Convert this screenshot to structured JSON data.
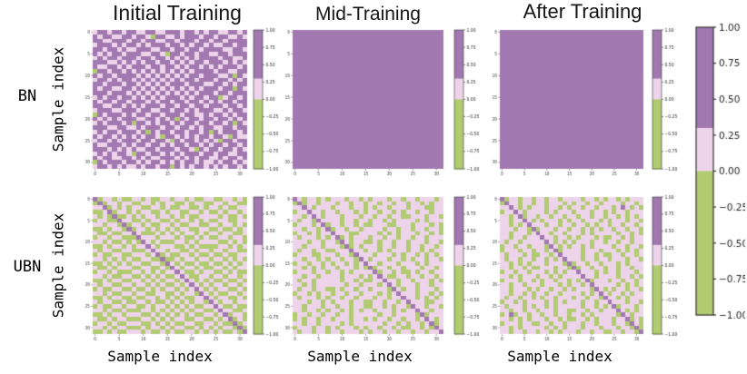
{
  "figure": {
    "column_titles": [
      "Initial Training",
      "Mid-Training",
      "After Training"
    ],
    "row_labels": [
      "BN",
      "UBN"
    ],
    "y_axis_label": "Sample index",
    "x_axis_label": "Sample index"
  },
  "chart_data": {
    "type": "heatmap",
    "grid_size": 32,
    "axis_ticks": [
      0,
      5,
      10,
      15,
      20,
      25,
      30
    ],
    "palette": {
      "0": "#b1cb70",
      "1": "#eed4ea",
      "2": "#a178af"
    },
    "colorbar": {
      "range": [
        1.0,
        -1.0
      ],
      "ticks": [
        1.0,
        0.75,
        0.5,
        0.25,
        0.0,
        -0.25,
        -0.5,
        -0.75,
        -1.0
      ],
      "tick_labels": [
        "1.00",
        "0.75",
        "0.50",
        "0.25",
        "0.00",
        "−0.25",
        "−0.50",
        "−0.75",
        "−1.00"
      ],
      "segments": [
        {
          "from": 1.0,
          "to": 0.3,
          "color": "#a178af"
        },
        {
          "from": 0.3,
          "to": 0.0,
          "color": "#eed4ea"
        },
        {
          "from": 0.0,
          "to": -1.0,
          "color": "#b1cb70"
        }
      ]
    },
    "panels": [
      {
        "id": "bn-initial",
        "row": "BN",
        "column": "Initial Training",
        "matrix": {
          "rows": [
            "12212212211221122212212122112212",
            "21221122122102211212221221221121",
            "22112221221221122122212212212222",
            "12221212212122212212122121122122",
            "22122121122211221221221222211221",
            "21212212221122102212212211221222",
            "12122122212212212121212222122112",
            "22211212121221221212122122212121",
            "21122121222122122121221212122212",
            "02212212121212121212122221221122",
            "21221222212121212121221222112021",
            "12212122121212121212212221221212",
            "22122212212121212221222112212122",
            "21221122121212121212121222122021",
            "22212221212121212121212221221222",
            "12122122121212122212122122012212",
            "21221221222121221221221212122122",
            "22112212121222122122122122212212",
            "12221122212211221221212221121221",
            "02122212122122122212211212212122",
            "21212122211221212021221221221212",
            "12122212022121221212212212212021",
            "22211221121222122122121221122122",
            "12122122212021221221221202122212",
            "21221212121221022121212212210211",
            "12212122212212210212212121022122",
            "21122212122122121221221212212212",
            "22212121211221222122102122122121",
            "12121221022122121212221221221122",
            "21221122121211222121212211212212",
            "02122212212122121212212112122121",
            "12212121121221220212122121212212"
          ]
        }
      },
      {
        "id": "bn-mid",
        "row": "BN",
        "column": "Mid-Training",
        "matrix": {
          "fill": "2"
        }
      },
      {
        "id": "bn-after",
        "row": "BN",
        "column": "After Training",
        "matrix": {
          "fill": "2"
        }
      },
      {
        "id": "ubn-initial",
        "row": "UBN",
        "column": "Initial Training",
        "matrix": {
          "diagonal": "2",
          "rows": [
            "10110100110100110110100110011010",
            "01011011001101011001011001101100",
            "11001010110011010011001011010011",
            "00110110101100101100110100101101",
            "10101001010110110101001111010010",
            "01100111001011001011010100110011",
            "11011000110100110100110011011010",
            "00101101011010101011001100100101",
            "10010011110001010101101011011001",
            "01101100001110111010010100110110",
            "11010010100101000110101111001010",
            "00101101011010111001010000110101",
            "10110011000101101100101101101100",
            "01001100111010010011010010010011",
            "11010101001100100101101101101010",
            "00101010110011011010010010010101",
            "10010111001100100101101001101011",
            "01101000110101011010010110010100",
            "11010011001010100101001101101101",
            "00101100110101011010101010010010",
            "10110011011010100101010101101101",
            "01001100100101011010101010110010",
            "11010011011001100101100101001101",
            "00101100100110101010011010110010",
            "10110010011010010101011001011011",
            "01001101100101101010100110100100",
            "11010010001101010101011001011001",
            "00101101110010101010100110100110",
            "10010110001101010110011001011010",
            "01101001110010101001100110100101",
            "11010110001011010110010101011010",
            "00101001110100101001101010100101"
          ]
        }
      },
      {
        "id": "ubn-mid",
        "row": "UBN",
        "column": "Mid-Training",
        "matrix": {
          "diagonal": "2",
          "rows": [
            "11011010111011010111011011011101",
            "01011011101101101101101101101011",
            "11010111011101101011011101110011",
            "01101101101110101101101011011011",
            "11010101110111011011011001110110",
            "10110111110110110110101111010111",
            "01110110110110100111001110111010",
            "11011011011011011110110110110110",
            "01101011011100111101010111011010",
            "10111010110101110110110110110111",
            "11101101101101100101101101110110",
            "11011101110101011101101101101101",
            "10110110011101101101011101101011",
            "01110011101101111011101011010101",
            "11011010110110110111011010110110",
            "01101101011010111101110111010111",
            "11010101101110101011011011101101",
            "01110110110101111101101001011011",
            "11011011110111010111001101101101",
            "10110111110110100110110110111010",
            "11010111111011011101010111011011",
            "10110110010110110111011011011101",
            "01101011011011011101011111011010",
            "10111010110110111011011111010101",
            "11101101011101100110110101110011",
            "11011101101101100110101101110110",
            "11011010110101011011101011011011",
            "01101101101101111101101111010111",
            "01011011011101101011011011011101",
            "11011011110101111110110101101101",
            "01110110101110101101101001101011",
            "10110110110111010110110110110111"
          ]
        }
      },
      {
        "id": "ubn-after",
        "row": "UBN",
        "column": "After Training",
        "matrix": {
          "diagonal": "2",
          "extra_cells": [
            [
              2,
              27
            ],
            [
              27,
              2
            ]
          ],
          "rows": [
            "10110110110110111101101011010111",
            "01110110110111010110110111101101",
            "11010101110110101101101110111010",
            "01101011110101110111011010110111",
            "11011011011011011011011011010101",
            "11011010101110101101110101110110",
            "11010111110110110110101101101101",
            "11101101011101101101010110110110",
            "11011101011011011101011111011010",
            "11011011101101101011101001101011",
            "10110111110101010111011011011011",
            "01101101110110101101011110110110",
            "01110110110110111101110111010101",
            "10111010011010111101101001101101",
            "10110110110101111101101101110110",
            "11010101110111010110110111010111",
            "11011010011101101011011011011011",
            "01101101110101011011101011011101",
            "11010111011010111101101111011010",
            "01110110101101101011011101101101",
            "11011011101110101101011111010101",
            "11011101011011010111011010110110",
            "11011010110110111101010101101011",
            "10110110101101110110110111010111",
            "01101011110101011101101101110110",
            "10111010110101111101101011011101",
            "11011011011101100110110111010101",
            "01101101101101101101011111011011",
            "11010101110110100110101110111010",
            "01110110011011011101101110110110",
            "11010111110101011101110111011010",
            "11011011011010111011011001101101"
          ]
        }
      }
    ]
  }
}
